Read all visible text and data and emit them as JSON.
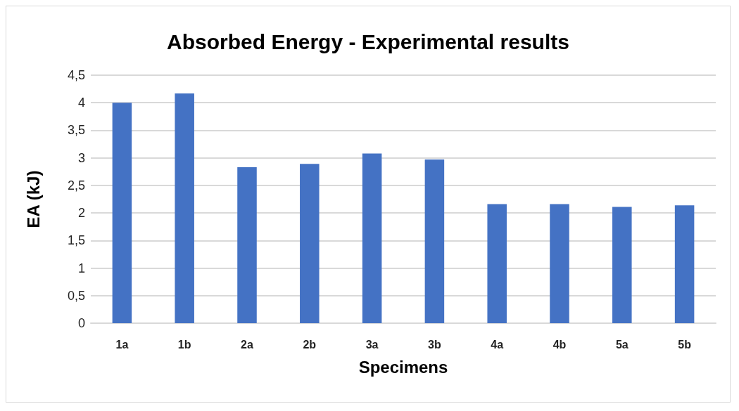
{
  "chart_data": {
    "type": "bar",
    "title": "Absorbed Energy - Experimental results",
    "xlabel": "Specimens",
    "ylabel": "EA (kJ)",
    "categories": [
      "1a",
      "1b",
      "2a",
      "2b",
      "3a",
      "3b",
      "4a",
      "4b",
      "5a",
      "5b"
    ],
    "values": [
      4.0,
      4.17,
      2.83,
      2.89,
      3.08,
      2.97,
      2.16,
      2.16,
      2.11,
      2.14
    ],
    "color": "#4472c4",
    "ylim": [
      0,
      4.5
    ],
    "yticks": [
      0,
      {
        "value": 0.5,
        "label": "0,5"
      },
      1,
      {
        "value": 1.5,
        "label": "1,5"
      },
      2,
      {
        "value": 2.5,
        "label": "2,5"
      },
      3,
      {
        "value": 3.5,
        "label": "3,5"
      },
      4,
      {
        "value": 4.5,
        "label": "4,5"
      }
    ],
    "grid": "y"
  }
}
